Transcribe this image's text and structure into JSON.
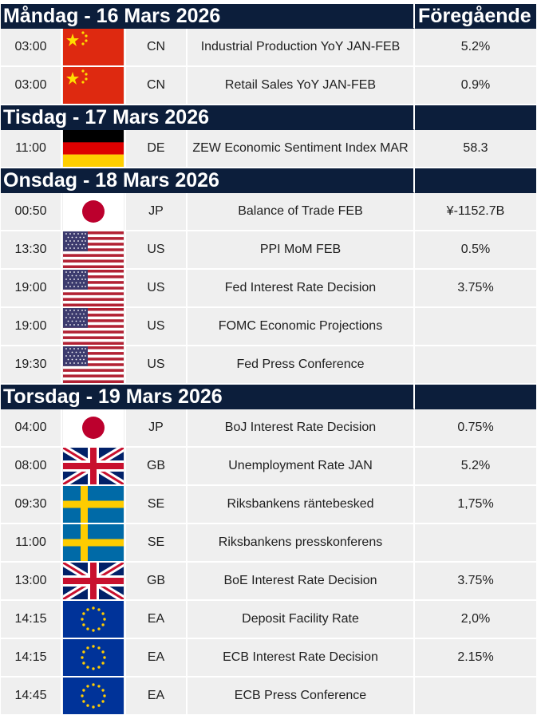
{
  "header": {
    "previous_label": "Föregående"
  },
  "days": [
    {
      "title": "Måndag - 16 Mars 2026",
      "events": [
        {
          "time": "03:00",
          "country": "CN",
          "event": "Industrial Production YoY JAN-FEB",
          "previous": "5.2%"
        },
        {
          "time": "03:00",
          "country": "CN",
          "event": "Retail Sales YoY JAN-FEB",
          "previous": "0.9%"
        }
      ]
    },
    {
      "title": "Tisdag - 17 Mars 2026",
      "events": [
        {
          "time": "11:00",
          "country": "DE",
          "event": "ZEW Economic Sentiment Index MAR",
          "previous": "58.3"
        }
      ]
    },
    {
      "title": "Onsdag - 18 Mars 2026",
      "events": [
        {
          "time": "00:50",
          "country": "JP",
          "event": "Balance of Trade FEB",
          "previous": "¥-1152.7B"
        },
        {
          "time": "13:30",
          "country": "US",
          "event": "PPI MoM FEB",
          "previous": "0.5%"
        },
        {
          "time": "19:00",
          "country": "US",
          "event": "Fed Interest Rate Decision",
          "previous": "3.75%"
        },
        {
          "time": "19:00",
          "country": "US",
          "event": "FOMC Economic Projections"
        },
        {
          "time": "19:30",
          "country": "US",
          "event": "Fed Press Conference"
        }
      ]
    },
    {
      "title": "Torsdag - 19 Mars 2026",
      "events": [
        {
          "time": "04:00",
          "country": "JP",
          "event": "BoJ Interest Rate Decision",
          "previous": "0.75%"
        },
        {
          "time": "08:00",
          "country": "GB",
          "event": "Unemployment Rate JAN",
          "previous": "5.2%"
        },
        {
          "time": "09:30",
          "country": "SE",
          "event": "Riksbankens räntebesked",
          "previous": "1,75%"
        },
        {
          "time": "11:00",
          "country": "SE",
          "event": "Riksbankens presskonferens"
        },
        {
          "time": "13:00",
          "country": "GB",
          "event": "BoE Interest Rate Decision",
          "previous": "3.75%"
        },
        {
          "time": "14:15",
          "country": "EA",
          "event": "Deposit Facility Rate",
          "previous": "2,0%"
        },
        {
          "time": "14:15",
          "country": "EA",
          "event": "ECB Interest Rate Decision",
          "previous": "2.15%"
        },
        {
          "time": "14:45",
          "country": "EA",
          "event": "ECB Press Conference"
        }
      ]
    }
  ]
}
